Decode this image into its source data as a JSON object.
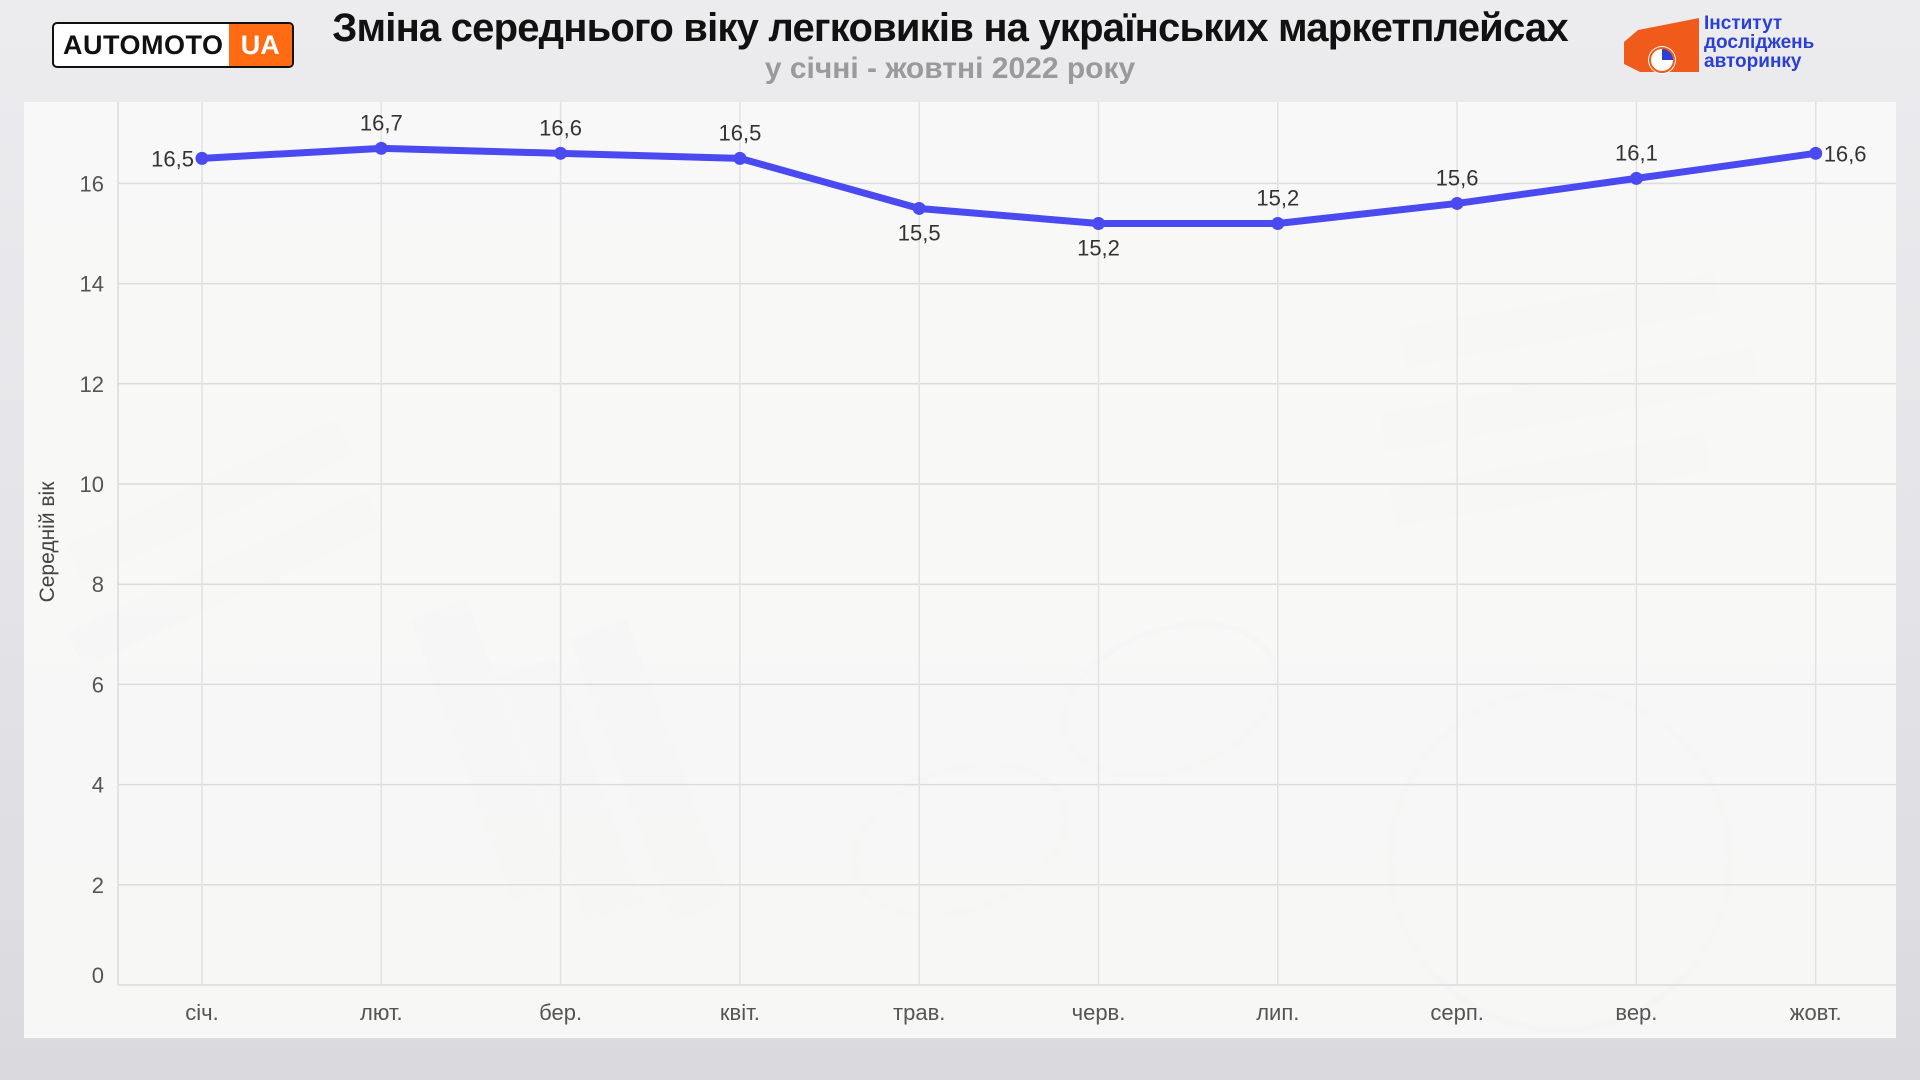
{
  "header": {
    "brand_left": "AUTOMOTO",
    "brand_right": "UA",
    "title": "Зміна середнього віку легковиків на українських маркетплейсах",
    "subtitle": "у січні - жовтні 2022 року",
    "institute_line1": "Інститут",
    "institute_line2": "досліджень",
    "institute_line3": "авторинку"
  },
  "colors": {
    "line": "#4a4af0",
    "brand_orange": "#ff6a13",
    "institute_blue": "#2b3fd4",
    "institute_orange": "#f05a1a"
  },
  "chart_data": {
    "type": "line",
    "title": "Зміна середнього віку легковиків на українських маркетплейсах",
    "subtitle": "у січні - жовтні 2022 року",
    "xlabel": "",
    "ylabel": "Середній вік",
    "categories": [
      "січ.",
      "лют.",
      "бер.",
      "квіт.",
      "трав.",
      "черв.",
      "лип.",
      "серп.",
      "вер.",
      "жовт."
    ],
    "values": [
      16.5,
      16.7,
      16.6,
      16.5,
      15.5,
      15.2,
      15.2,
      15.6,
      16.1,
      16.6
    ],
    "data_labels": [
      "16,5",
      "16,7",
      "16,6",
      "16,5",
      "15,5",
      "15,2",
      "15,2",
      "15,6",
      "16,1",
      "16,6"
    ],
    "yticks": [
      "0",
      "2",
      "4",
      "6",
      "8",
      "10",
      "12",
      "14",
      "16"
    ],
    "ylim": [
      0,
      17.5
    ],
    "grid": true,
    "legend": "none"
  }
}
